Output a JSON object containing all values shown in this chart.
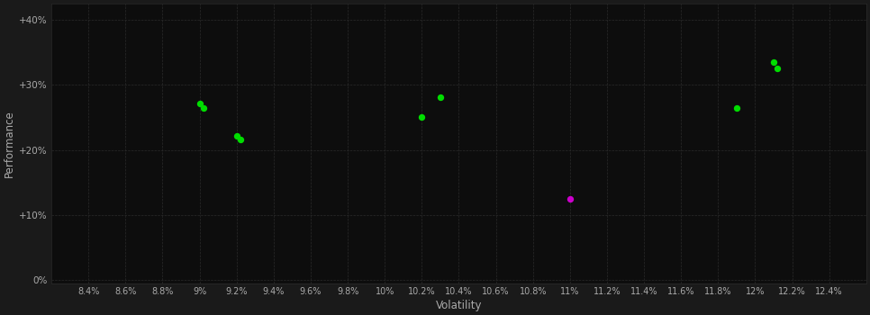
{
  "background_color": "#1a1a1a",
  "plot_bg_color": "#0d0d0d",
  "grid_color": "#2a2a2a",
  "text_color": "#aaaaaa",
  "xlabel": "Volatility",
  "ylabel": "Performance",
  "xlim": [
    0.082,
    0.126
  ],
  "ylim": [
    -0.005,
    0.425
  ],
  "xtick_values": [
    0.084,
    0.086,
    0.088,
    0.09,
    0.092,
    0.094,
    0.096,
    0.098,
    0.1,
    0.102,
    0.104,
    0.106,
    0.108,
    0.11,
    0.112,
    0.114,
    0.116,
    0.118,
    0.12,
    0.122,
    0.124
  ],
  "ytick_values": [
    0.0,
    0.1,
    0.2,
    0.3,
    0.4
  ],
  "green_points": [
    [
      0.09,
      0.272
    ],
    [
      0.0902,
      0.265
    ],
    [
      0.092,
      0.222
    ],
    [
      0.0922,
      0.216
    ],
    [
      0.102,
      0.25
    ],
    [
      0.103,
      0.281
    ],
    [
      0.119,
      0.265
    ],
    [
      0.121,
      0.335
    ],
    [
      0.1212,
      0.325
    ]
  ],
  "magenta_points": [
    [
      0.11,
      0.125
    ]
  ],
  "green_color": "#00dd00",
  "magenta_color": "#cc00cc",
  "marker_size": 28
}
